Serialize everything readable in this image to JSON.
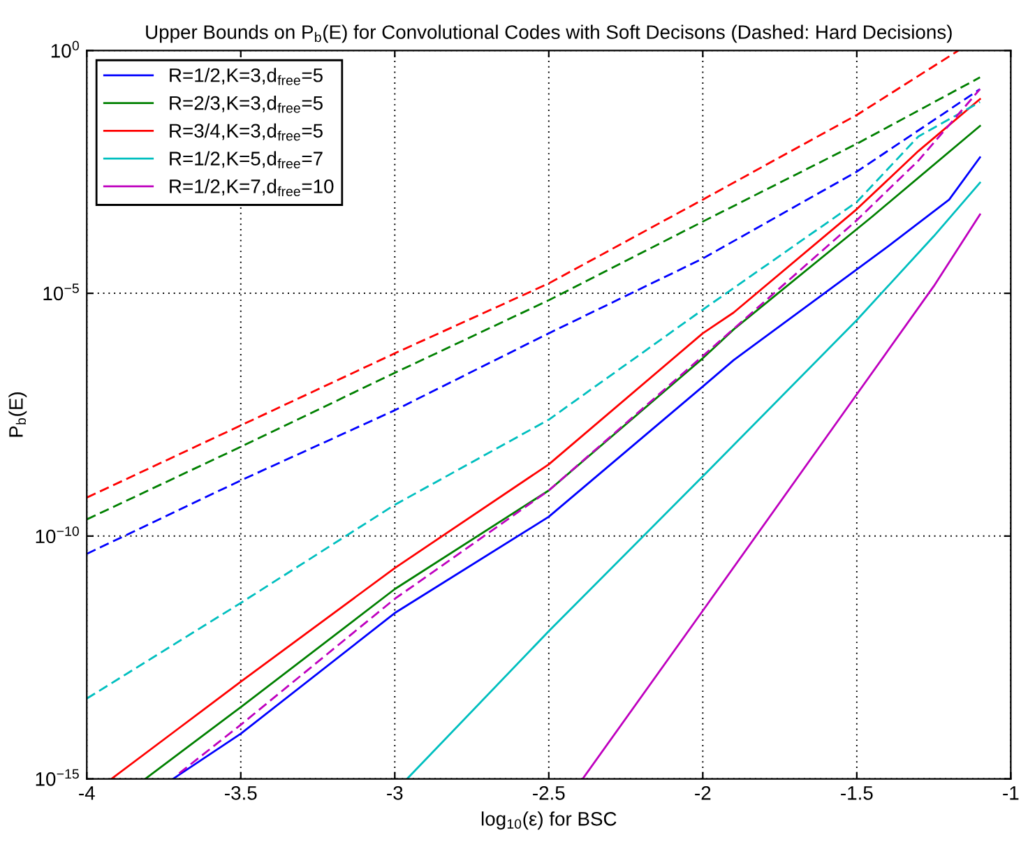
{
  "chart_data": {
    "type": "line",
    "title": "Upper Bounds on P$_{b}$(E) for Convolutional Codes with Soft Decisons (Dashed: Hard Decisions)",
    "xlabel": "log$_{10}$(ε) for BSC",
    "ylabel": "P$_{b}$(E)",
    "log": "y",
    "grid": true,
    "legend": "top left",
    "marker": "none",
    "xlim": [
      -4,
      -1
    ],
    "xticks": [
      -4,
      -3.5,
      -3,
      -2.5,
      -2,
      -1.5,
      -1
    ],
    "ylim": [
      1e-15,
      1
    ],
    "yticks": [
      {
        "value": 1e-15,
        "label": "10$^{−15}$"
      },
      {
        "value": 1e-10,
        "label": "10$^{−10}$"
      },
      {
        "value": 1e-05,
        "label": "10$^{−5}$"
      },
      {
        "value": 1,
        "label": "10$^{0}$"
      }
    ],
    "series": [
      {
        "name": "R=1/2,K=3,d$_{free}$=5",
        "color": "#0000ff",
        "line_style": "solid",
        "x": [
          -3.72,
          -3.5,
          -3,
          -2.5,
          -2,
          -1.9,
          -1.4,
          -1.2,
          -1.1
        ],
        "values": [
          1e-15,
          8.5e-15,
          2.6e-12,
          2.5e-10,
          1.2e-07,
          4.2e-07,
          9.1e-05,
          0.00085,
          0.0063
        ]
      },
      {
        "name": "R=2/3,K=3,d$_{free}$=5",
        "color": "#008000",
        "line_style": "solid",
        "x": [
          -3.81,
          -3.5,
          -3,
          -2.5,
          -2,
          -1.9,
          -1.45,
          -1.1
        ],
        "values": [
          1e-15,
          3e-14,
          8.1e-12,
          8.7e-10,
          4.6e-07,
          1.8e-06,
          0.00038,
          0.028
        ]
      },
      {
        "name": "R=3/4,K=3,d$_{free}$=5",
        "color": "#ff0000",
        "line_style": "solid",
        "x": [
          -3.92,
          -3.5,
          -3,
          -2.5,
          -2,
          -1.9,
          -1.5,
          -1.3,
          -1.1
        ],
        "values": [
          1e-15,
          1e-13,
          2.2e-11,
          3e-09,
          1.5e-06,
          4e-06,
          0.00054,
          0.0085,
          0.1
        ]
      },
      {
        "name": "R=1/2,K=5,d$_{free}$=7",
        "color": "#00bfbf",
        "line_style": "solid",
        "x": [
          -2.96,
          -2.5,
          -2,
          -1.5,
          -1.25,
          -1.1
        ],
        "values": [
          1e-15,
          1.1e-12,
          1.7e-09,
          2.8e-06,
          0.00015,
          0.0019
        ]
      },
      {
        "name": "R=1/2,K=7,d$_{free}$=10",
        "color": "#bf00bf",
        "line_style": "solid",
        "x": [
          -2.39,
          -2,
          -1.5,
          -1.25,
          -1.1
        ],
        "values": [
          1e-15,
          2.9e-12,
          8.3e-08,
          1.4e-05,
          0.00042
        ]
      },
      {
        "color": "#0000ff",
        "line_style": "dashed",
        "x": [
          -4,
          -3.5,
          -3,
          -2.5,
          -2,
          -1.5,
          -1.1
        ],
        "values": [
          4.3e-11,
          1.4e-09,
          3.9e-08,
          1.5e-06,
          5.2e-05,
          0.0032,
          0.16
        ]
      },
      {
        "color": "#008000",
        "line_style": "dashed",
        "x": [
          -4,
          -3.5,
          -3,
          -2.5,
          -2,
          -1.5,
          -1.1
        ],
        "values": [
          2.2e-10,
          6.9e-09,
          2.3e-07,
          7.2e-06,
          0.0003,
          0.012,
          0.28
        ]
      },
      {
        "color": "#ff0000",
        "line_style": "dashed",
        "x": [
          -4,
          -3.5,
          -3,
          -2.5,
          -2,
          -1.5,
          -1.17
        ],
        "values": [
          6.2e-10,
          1.9e-08,
          5.8e-07,
          1.6e-05,
          0.00085,
          0.047,
          1
        ]
      },
      {
        "color": "#00bfbf",
        "line_style": "dashed",
        "x": [
          -4,
          -3.5,
          -3,
          -2.5,
          -2,
          -1.5,
          -1.3,
          -1.1
        ],
        "values": [
          4.5e-14,
          4.2e-12,
          4.4e-10,
          2.5e-08,
          4.6e-06,
          0.00076,
          0.017,
          0.087
        ]
      },
      {
        "color": "#bf00bf",
        "line_style": "dashed",
        "x": [
          -3.7,
          -3.5,
          -3,
          -2.5,
          -2,
          -1.5,
          -1.3,
          -1.1
        ],
        "values": [
          1.3e-15,
          1.3e-14,
          5.1e-12,
          8.7e-10,
          5.1e-07,
          0.00032,
          0.0054,
          0.16
        ]
      }
    ]
  }
}
